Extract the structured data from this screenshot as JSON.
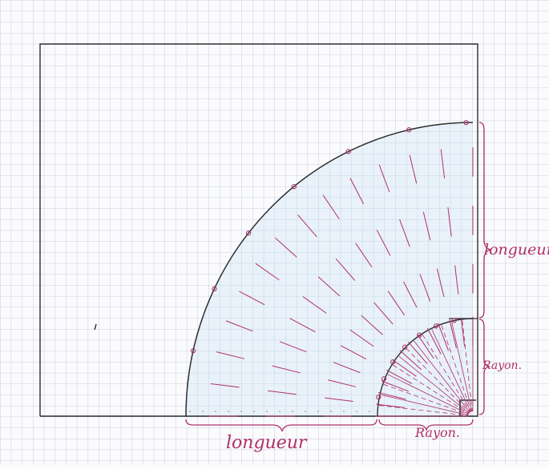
{
  "labels": {
    "longueur_right": "longueur",
    "rayon_right": "Rayon.",
    "longueur_bottom": "longueur",
    "rayon_bottom": "Rayon."
  },
  "colors": {
    "paper": "#fbfbfd",
    "grid": "#b9c4dc",
    "pencil": "#2e2e2e",
    "ink": "#b0306a",
    "pencil_blue": "#bcdcf2"
  }
}
